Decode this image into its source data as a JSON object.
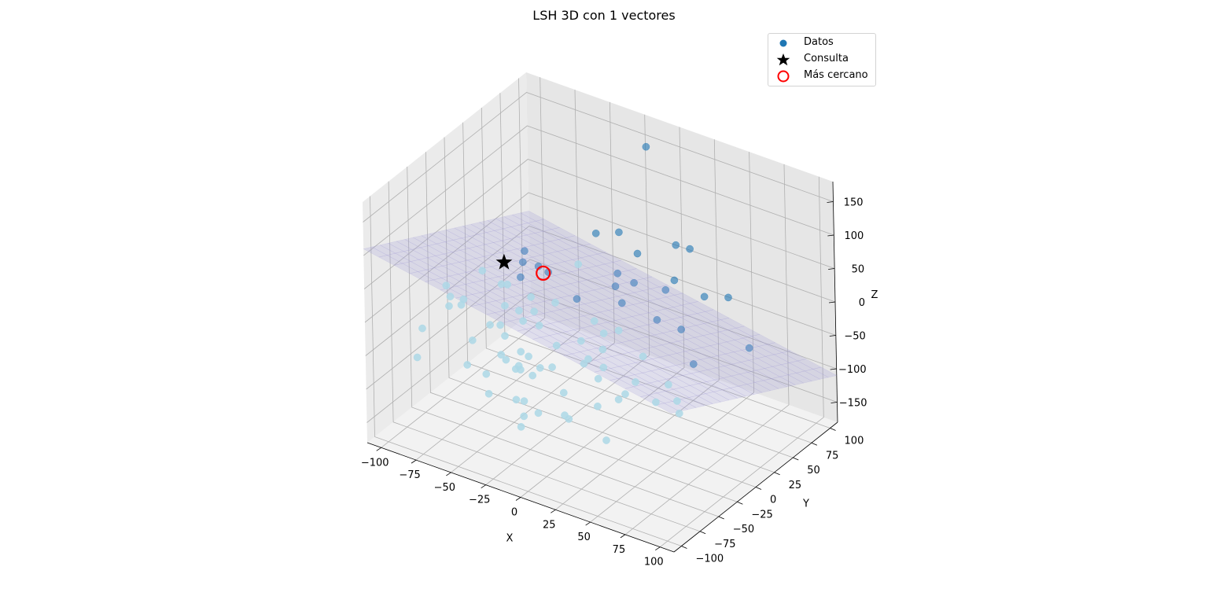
{
  "chart_data": {
    "type": "scatter",
    "title": "LSH 3D con 1 vectores",
    "xlabel": "X",
    "ylabel": "Y",
    "zlabel": "Z",
    "xlim": [
      -110,
      110
    ],
    "ylim": [
      -110,
      110
    ],
    "zlim": [
      -180,
      180
    ],
    "x_ticks": [
      "−100",
      "−75",
      "−50",
      "−25",
      "0",
      "25",
      "50",
      "75",
      "100"
    ],
    "y_ticks": [
      "−100",
      "−75",
      "−50",
      "−25",
      "0",
      "25",
      "50",
      "75",
      "100"
    ],
    "z_ticks": [
      "−150",
      "−100",
      "−50",
      "0",
      "50",
      "100",
      "150"
    ],
    "grid": true,
    "legend_position": "top-right",
    "colors": {
      "bucket_a": "#1f77b4",
      "bucket_b": "#add8e6",
      "plane": "#9b96d4",
      "query": "#000000",
      "nearest": "#ff0000",
      "pane": "#f2f2f2",
      "grid": "#b0b0b0"
    },
    "legend": [
      {
        "label": "Datos",
        "marker": "circle"
      },
      {
        "label": "Consulta",
        "marker": "star"
      },
      {
        "label": "Más cercano",
        "marker": "ring"
      }
    ],
    "plane_normal": [
      0.3,
      0.5,
      0.8
    ],
    "query": {
      "x": -79,
      "y": 19,
      "z": -1
    },
    "nearest": {
      "x": -58,
      "y": 32,
      "z": -13
    },
    "series": [
      {
        "name": "Datos",
        "points": [
          [
            -19,
            100,
            145
          ],
          [
            -15,
            -40,
            84
          ],
          [
            -33,
            57,
            43
          ],
          [
            -13,
            48,
            6
          ],
          [
            22,
            47,
            8
          ],
          [
            5,
            15,
            -37
          ],
          [
            26,
            8,
            -54
          ],
          [
            -10,
            -12,
            23
          ],
          [
            17,
            -2,
            28
          ],
          [
            -40,
            -31,
            50
          ],
          [
            27,
            71,
            52
          ],
          [
            -36,
            -35,
            79
          ],
          [
            48,
            19,
            -7
          ],
          [
            47,
            -55,
            -39
          ],
          [
            82,
            -28,
            8
          ],
          [
            -51,
            -5,
            58
          ],
          [
            19,
            -79,
            -76
          ],
          [
            -28,
            -36,
            12
          ],
          [
            40,
            -51,
            -56
          ],
          [
            18,
            -30,
            -43
          ],
          [
            -29,
            -6,
            -2
          ],
          [
            48,
            -43,
            -31
          ],
          [
            25,
            -50,
            -37
          ],
          [
            26,
            -2,
            65
          ],
          [
            41,
            24,
            57
          ],
          [
            -37,
            -28,
            -69
          ],
          [
            80,
            -47,
            -32
          ],
          [
            -13,
            -79,
            -73
          ],
          [
            74,
            -47,
            -12
          ],
          [
            39,
            67,
            -7
          ],
          [
            47,
            -11,
            33
          ],
          [
            6,
            -37,
            -6
          ],
          [
            -47,
            -16,
            -34
          ],
          [
            10,
            -14,
            -12
          ],
          [
            63,
            -44,
            -49
          ],
          [
            88,
            -59,
            -34
          ],
          [
            59,
            62,
            11
          ],
          [
            -6,
            32,
            6
          ],
          [
            23,
            -59,
            -1
          ],
          [
            92,
            28,
            -10
          ],
          [
            -21,
            -42,
            90
          ],
          [
            24,
            58,
            67
          ],
          [
            3,
            -3,
            -51
          ],
          [
            -50,
            64,
            -22
          ],
          [
            -24,
            71,
            39
          ],
          [
            -24,
            95,
            -14
          ],
          [
            -8,
            -8,
            -76
          ],
          [
            -78,
            -55,
            14
          ],
          [
            -19,
            -30,
            -70
          ],
          [
            -21,
            -65,
            -114
          ],
          [
            42,
            -72,
            -97
          ],
          [
            21,
            -88,
            -61
          ],
          [
            -79,
            15,
            -30
          ],
          [
            -13,
            16,
            -37
          ],
          [
            -91,
            -69,
            -31
          ],
          [
            -4,
            -77,
            -86
          ],
          [
            -80,
            -37,
            -16
          ],
          [
            -87,
            -21,
            -27
          ],
          [
            -85,
            1,
            -2
          ],
          [
            -46,
            -65,
            -99
          ],
          [
            -18,
            -58,
            -57
          ],
          [
            -56,
            -24,
            -56
          ],
          [
            1,
            -52,
            -74
          ],
          [
            -48,
            -18,
            -79
          ],
          [
            -53,
            6,
            -22
          ],
          [
            22,
            -46,
            -84
          ],
          [
            -58,
            -1,
            -40
          ],
          [
            -9,
            -91,
            -98
          ],
          [
            -41,
            -38,
            -82
          ],
          [
            -36,
            -43,
            -69
          ],
          [
            -79,
            -55,
            -1
          ],
          [
            -49,
            -36,
            -76
          ],
          [
            -68,
            -45,
            -53
          ],
          [
            -57,
            -28,
            -37
          ],
          [
            -66,
            -5,
            -35
          ],
          [
            -19,
            -46,
            -57
          ],
          [
            -21,
            -20,
            -48
          ],
          [
            -31,
            -50,
            -65
          ],
          [
            -83,
            -91,
            -49
          ],
          [
            -47,
            -46,
            -58
          ],
          [
            -28,
            -62,
            -97
          ],
          [
            -72,
            10,
            -21
          ],
          [
            -65,
            -58,
            -76
          ],
          [
            -66,
            -25,
            -46
          ],
          [
            -89,
            -40,
            9
          ],
          [
            -52,
            -57,
            -81
          ],
          [
            -37,
            -13,
            -36
          ]
        ]
      }
    ]
  }
}
